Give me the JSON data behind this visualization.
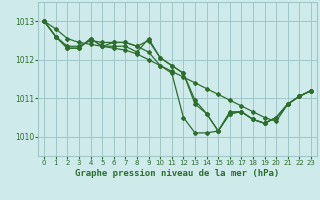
{
  "title": "Graphe pression niveau de la mer (hPa)",
  "bg_color": "#ceeaea",
  "grid_color": "#a0c8c8",
  "line_color": "#2d6e2d",
  "ylim": [
    1009.5,
    1013.5
  ],
  "xlim": [
    -0.5,
    23.5
  ],
  "yticks": [
    1010,
    1011,
    1012,
    1013
  ],
  "xticks": [
    0,
    1,
    2,
    3,
    4,
    5,
    6,
    7,
    8,
    9,
    10,
    11,
    12,
    13,
    14,
    15,
    16,
    17,
    18,
    19,
    20,
    21,
    22,
    23
  ],
  "series": [
    [
      1013.0,
      1012.8,
      1012.55,
      1012.45,
      1012.4,
      1012.35,
      1012.3,
      1012.25,
      1012.15,
      1012.0,
      1011.85,
      1011.7,
      1011.55,
      1011.4,
      1011.25,
      1011.1,
      1010.95,
      1010.8,
      1010.65,
      1010.5,
      1010.4,
      1010.85,
      1011.05,
      1011.2
    ],
    [
      1013.0,
      1012.6,
      1012.35,
      1012.35,
      1012.5,
      1012.45,
      1012.45,
      1012.45,
      1012.35,
      1012.2,
      1011.85,
      1011.65,
      1010.5,
      1010.1,
      1010.1,
      1010.15,
      1010.6,
      1010.65,
      1010.45,
      1010.35,
      1010.5,
      1010.85,
      1011.05,
      1011.2
    ],
    [
      1013.0,
      1012.6,
      1012.3,
      1012.3,
      1012.55,
      1012.35,
      1012.45,
      1012.45,
      1012.35,
      1012.5,
      1012.05,
      1011.85,
      1011.65,
      1010.85,
      1010.6,
      1010.15,
      1010.6,
      1010.65,
      1010.45,
      1010.35,
      1010.5,
      1010.85,
      1011.05,
      1011.2
    ],
    [
      1013.0,
      1012.6,
      1012.3,
      1012.3,
      1012.55,
      1012.35,
      1012.35,
      1012.35,
      1012.2,
      1012.55,
      1012.05,
      1011.85,
      1011.65,
      1010.95,
      1010.6,
      1010.15,
      1010.65,
      1010.65,
      1010.45,
      1010.35,
      1010.5,
      1010.85,
      1011.05,
      1011.2
    ]
  ],
  "tick_fontsize": 5.0,
  "xlabel_fontsize": 6.5,
  "ytick_fontsize": 5.5
}
